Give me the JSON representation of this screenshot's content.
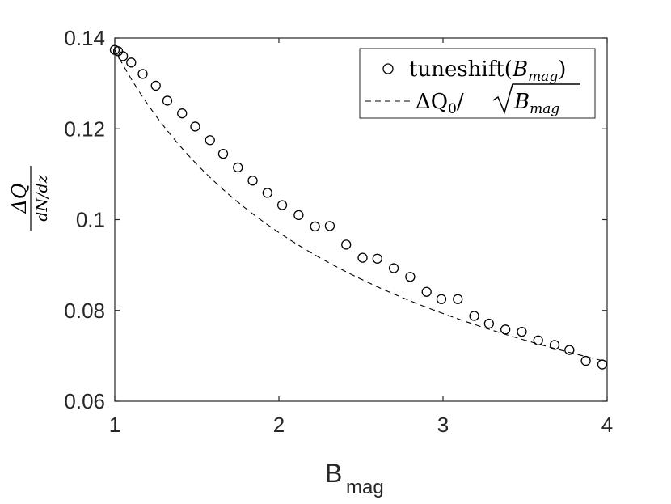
{
  "chart_data": {
    "type": "scatter",
    "xlabel": "B",
    "xlabel_sub": "mag",
    "ylabel_num": "ΔQ",
    "ylabel_den": "dN/dz",
    "xlim": [
      1,
      4
    ],
    "ylim": [
      0.06,
      0.14
    ],
    "x_ticks": [
      1,
      2,
      3,
      4
    ],
    "x_tick_labels": [
      "1",
      "2",
      "3",
      "4"
    ],
    "y_ticks": [
      0.06,
      0.08,
      0.1,
      0.12,
      0.14
    ],
    "y_tick_labels": [
      "0.06",
      "0.08",
      "0.1",
      "0.12",
      "0.14"
    ],
    "grid": false,
    "legend_position": "top-right",
    "series": [
      {
        "name": "tuneshift(B_mag)",
        "legend_main": "tuneshift(",
        "legend_var": "B",
        "legend_sub": "mag",
        "legend_close": ")",
        "style": "open-circle",
        "color": "#000000",
        "points": [
          [
            1.0,
            0.1374
          ],
          [
            1.02,
            0.1371
          ],
          [
            1.05,
            0.136
          ],
          [
            1.1,
            0.1346
          ],
          [
            1.17,
            0.1321
          ],
          [
            1.25,
            0.1295
          ],
          [
            1.32,
            0.1262
          ],
          [
            1.41,
            0.1234
          ],
          [
            1.49,
            0.1205
          ],
          [
            1.58,
            0.1175
          ],
          [
            1.66,
            0.1145
          ],
          [
            1.75,
            0.1115
          ],
          [
            1.84,
            0.1086
          ],
          [
            1.93,
            0.1059
          ],
          [
            2.02,
            0.1032
          ],
          [
            2.12,
            0.101
          ],
          [
            2.22,
            0.0985
          ],
          [
            2.31,
            0.0986
          ],
          [
            2.41,
            0.0945
          ],
          [
            2.51,
            0.0916
          ],
          [
            2.6,
            0.0914
          ],
          [
            2.7,
            0.0893
          ],
          [
            2.8,
            0.0874
          ],
          [
            2.9,
            0.0841
          ],
          [
            2.99,
            0.0825
          ],
          [
            3.09,
            0.0825
          ],
          [
            3.19,
            0.0788
          ],
          [
            3.28,
            0.0771
          ],
          [
            3.38,
            0.0758
          ],
          [
            3.48,
            0.0753
          ],
          [
            3.58,
            0.0734
          ],
          [
            3.68,
            0.0724
          ],
          [
            3.77,
            0.0713
          ],
          [
            3.87,
            0.0689
          ],
          [
            3.97,
            0.0681
          ]
        ]
      },
      {
        "name": "ΔQ0/√Bmag",
        "legend_math": "ΔQ",
        "legend_sub0": "0",
        "legend_over": "/",
        "legend_var": "B",
        "legend_sub": "mag",
        "style": "dashed-line",
        "color": "#000000",
        "formula": "0.1374/sqrt(x)"
      }
    ]
  }
}
